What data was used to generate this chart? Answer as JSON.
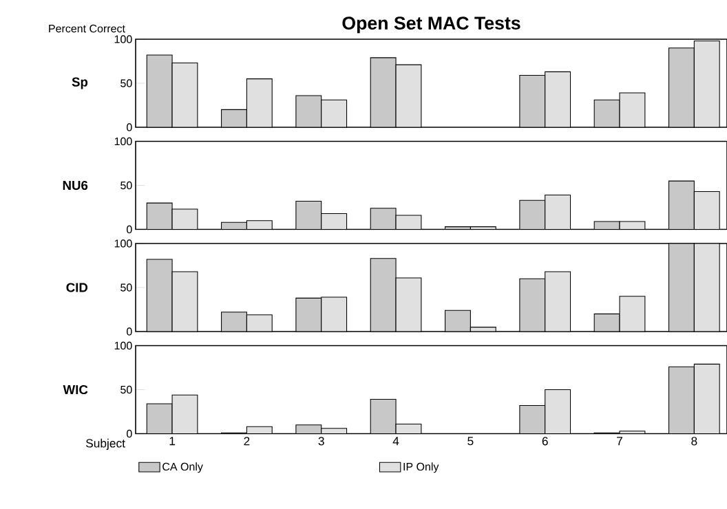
{
  "chart_data": [
    {
      "type": "bar",
      "title": "Open Set MAC Tests",
      "ylabel": "Sp",
      "annotations": [
        "Percent Correct"
      ],
      "categories": [
        "1",
        "2",
        "3",
        "4",
        "5",
        "6",
        "7",
        "8"
      ],
      "ylim": [
        0,
        100
      ],
      "yticks": [
        0,
        50,
        100
      ],
      "tick_labels": "y",
      "grid": false,
      "legend": false,
      "series": [
        {
          "color": "#c8c8c8",
          "values": [
            82,
            20,
            36,
            79,
            null,
            59,
            31,
            90
          ]
        },
        {
          "color": "#e0e0e0",
          "values": [
            73,
            55,
            31,
            71,
            null,
            63,
            39,
            98
          ]
        }
      ]
    },
    {
      "type": "bar",
      "ylabel": "NU6",
      "categories": [
        "1",
        "2",
        "3",
        "4",
        "5",
        "6",
        "7",
        "8"
      ],
      "ylim": [
        0,
        100
      ],
      "yticks": [
        0,
        50,
        100
      ],
      "tick_labels": "y",
      "grid": false,
      "legend": false,
      "series": [
        {
          "color": "#c8c8c8",
          "values": [
            30,
            8,
            32,
            24,
            3,
            33,
            9,
            55
          ]
        },
        {
          "color": "#e0e0e0",
          "values": [
            23,
            10,
            18,
            16,
            3,
            39,
            9,
            43
          ]
        }
      ]
    },
    {
      "type": "bar",
      "ylabel": "CID",
      "categories": [
        "1",
        "2",
        "3",
        "4",
        "5",
        "6",
        "7",
        "8"
      ],
      "ylim": [
        0,
        100
      ],
      "yticks": [
        0,
        50,
        100
      ],
      "tick_labels": "y",
      "grid": false,
      "legend": false,
      "series": [
        {
          "color": "#c8c8c8",
          "values": [
            82,
            22,
            38,
            83,
            24,
            60,
            20,
            100
          ]
        },
        {
          "color": "#e0e0e0",
          "values": [
            68,
            19,
            39,
            61,
            5,
            68,
            40,
            100
          ]
        }
      ]
    },
    {
      "type": "bar",
      "ylabel": "WIC",
      "xlabel": "Subject",
      "categories": [
        "1",
        "2",
        "3",
        "4",
        "5",
        "6",
        "7",
        "8"
      ],
      "ylim": [
        0,
        100
      ],
      "yticks": [
        0,
        50,
        100
      ],
      "grid": false,
      "legend": "bottom",
      "series": [
        {
          "name": "CA Only",
          "color": "#c8c8c8",
          "values": [
            34,
            1,
            10,
            39,
            null,
            32,
            1,
            76
          ]
        },
        {
          "name": "IP Only",
          "color": "#e0e0e0",
          "values": [
            44,
            8,
            6,
            11,
            null,
            50,
            3,
            79
          ]
        }
      ]
    }
  ]
}
